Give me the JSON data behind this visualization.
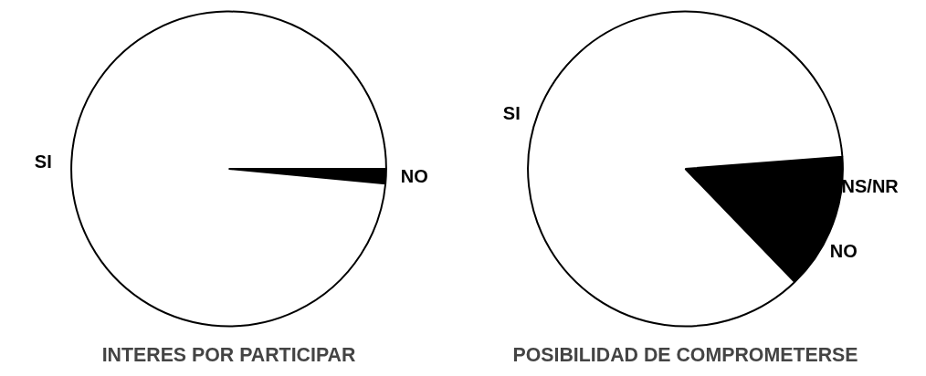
{
  "chart_data": [
    {
      "type": "pie",
      "title": "INTERES POR PARTICIPAR",
      "categories": [
        "SI",
        "NO"
      ],
      "values": [
        98.5,
        1.5
      ],
      "colors": [
        "#ffffff",
        "#000000"
      ]
    },
    {
      "type": "pie",
      "title": "POSIBILIDAD DE COMPROMETERSE",
      "categories": [
        "SI",
        "NS/NR",
        "NO"
      ],
      "values": [
        86,
        6,
        8
      ],
      "colors": [
        "#ffffff",
        "#000000",
        "#000000"
      ]
    }
  ]
}
